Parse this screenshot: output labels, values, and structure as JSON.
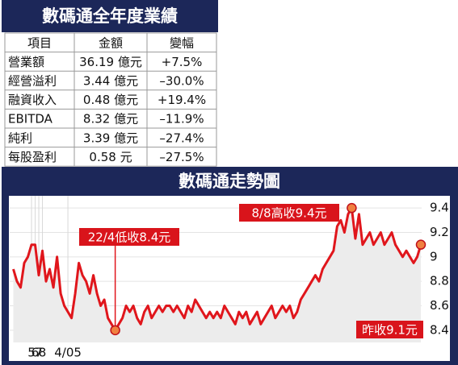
{
  "table": {
    "title": "數碼通全年度業績",
    "header": [
      "項目",
      "金額",
      "變幅"
    ],
    "rows": [
      [
        "營業額",
        "36.19 億元",
        "+7.5%"
      ],
      [
        "經營溢利",
        "3.44 億元",
        "–30.0%"
      ],
      [
        "融資收入",
        "0.48 億元",
        "+19.4%"
      ],
      [
        "EBITDA",
        "8.32 億元",
        "–11.9%"
      ],
      [
        "純利",
        "3.39 億元",
        "–27.4%"
      ],
      [
        "每股盈利",
        "0.58 元",
        "–27.5%"
      ]
    ]
  },
  "chart_data": {
    "type": "line",
    "title": "數碼通走勢圖",
    "x": [
      0,
      1,
      2,
      3,
      4,
      5,
      6,
      7,
      8,
      9,
      10,
      11,
      12,
      13,
      14,
      15,
      16,
      17,
      18,
      19,
      20,
      21,
      22,
      23,
      24,
      25,
      26,
      27,
      28,
      29,
      30,
      31,
      32,
      33,
      34,
      35,
      36,
      37,
      38,
      39,
      40,
      41,
      42,
      43,
      44,
      45,
      46,
      47,
      48,
      49,
      50,
      51,
      52,
      53,
      54,
      55,
      56,
      57,
      58,
      59,
      60,
      61,
      62,
      63,
      64,
      65,
      66,
      67,
      68,
      69,
      70,
      71,
      72,
      73,
      74,
      75,
      76,
      77,
      78,
      79,
      80,
      81,
      82,
      83,
      84,
      85,
      86,
      87,
      88,
      89,
      90,
      91,
      92,
      93,
      94,
      95,
      96,
      97,
      98,
      99,
      100,
      101,
      102,
      103,
      104,
      105,
      106,
      107,
      108,
      109,
      110,
      111,
      112
    ],
    "series": [
      {
        "name": null,
        "color": "#e0161c",
        "values": [
          8.9,
          8.8,
          8.75,
          8.95,
          9.0,
          9.1,
          9.1,
          8.85,
          9.05,
          8.8,
          8.9,
          8.75,
          9.0,
          8.7,
          8.6,
          8.55,
          8.5,
          8.7,
          8.95,
          8.85,
          8.8,
          8.7,
          8.85,
          8.7,
          8.6,
          8.65,
          8.5,
          8.45,
          8.4,
          8.45,
          8.5,
          8.6,
          8.55,
          8.6,
          8.5,
          8.45,
          8.55,
          8.6,
          8.5,
          8.55,
          8.6,
          8.55,
          8.6,
          8.6,
          8.55,
          8.6,
          8.55,
          8.5,
          8.6,
          8.55,
          8.65,
          8.6,
          8.55,
          8.5,
          8.55,
          8.5,
          8.55,
          8.5,
          8.6,
          8.55,
          8.5,
          8.45,
          8.55,
          8.5,
          8.55,
          8.45,
          8.5,
          8.55,
          8.45,
          8.5,
          8.55,
          8.6,
          8.5,
          8.55,
          8.6,
          8.55,
          8.6,
          8.5,
          8.55,
          8.65,
          8.7,
          8.75,
          8.8,
          8.85,
          8.8,
          8.9,
          8.95,
          9.0,
          9.05,
          9.25,
          9.3,
          9.2,
          9.35,
          9.4,
          9.15,
          9.35,
          9.1,
          9.15,
          9.2,
          9.1,
          9.15,
          9.2,
          9.1,
          9.15,
          9.2,
          9.1,
          9.05,
          9.0,
          9.05,
          9.0,
          8.95,
          9.0,
          9.1
        ]
      }
    ],
    "xlim": [
      -1,
      114
    ],
    "xticks": [
      {
        "value": 15,
        "label": "4/05"
      },
      5,
      6,
      7,
      8
    ],
    "ylim": [
      8.3,
      9.5
    ],
    "yticks": [
      8.4,
      8.6,
      8.8,
      9.0,
      9.2,
      9.4
    ],
    "annotations": [
      {
        "text": "22/4低收8.4元",
        "x": 28,
        "y": 8.4
      },
      {
        "text": "8/8高收9.4元",
        "x": 93,
        "y": 9.4
      },
      {
        "text": "昨收9.1元",
        "x": 112,
        "y": 9.1
      }
    ],
    "grid": true
  }
}
